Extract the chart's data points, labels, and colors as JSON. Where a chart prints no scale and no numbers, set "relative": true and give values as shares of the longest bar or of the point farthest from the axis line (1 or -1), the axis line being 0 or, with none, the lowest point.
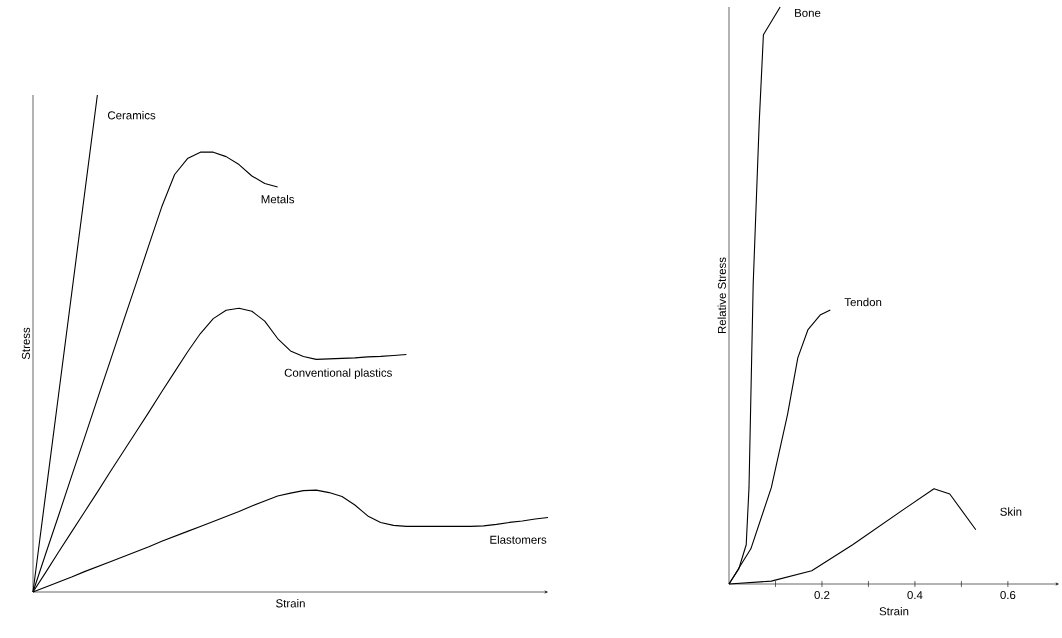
{
  "chart_data": [
    {
      "type": "line",
      "xlabel": "Strain",
      "ylabel": "Stress",
      "relative": true,
      "tick_labels": false,
      "categories": [
        null,
        null,
        null,
        null,
        null,
        null,
        null,
        null,
        null,
        null,
        null,
        null,
        null,
        null,
        null,
        null,
        null,
        null,
        null,
        null,
        null,
        null,
        null,
        null,
        null,
        null,
        null,
        null,
        null,
        null,
        null,
        null,
        null,
        null,
        null,
        null,
        null,
        null,
        null,
        null,
        null
      ],
      "series": [
        {
          "name": "Ceramics",
          "color": "#000000",
          "values": [
            0,
            0.2,
            0.4,
            0.6,
            0.8,
            1.0,
            null,
            null,
            null,
            null,
            null,
            null,
            null,
            null,
            null,
            null,
            null,
            null,
            null,
            null,
            null,
            null,
            null,
            null,
            null,
            null,
            null,
            null,
            null,
            null,
            null,
            null,
            null,
            null,
            null,
            null,
            null,
            null,
            null,
            null,
            null
          ]
        },
        {
          "name": "Metals",
          "color": "#000000",
          "values": [
            0,
            0.078,
            0.155,
            0.233,
            0.31,
            0.388,
            0.465,
            0.543,
            0.62,
            0.698,
            0.775,
            0.84,
            0.872,
            0.885,
            0.885,
            0.876,
            0.86,
            0.837,
            0.822,
            0.815,
            null,
            null,
            null,
            null,
            null,
            null,
            null,
            null,
            null,
            null,
            null,
            null,
            null,
            null,
            null,
            null,
            null,
            null,
            null,
            null,
            null
          ]
        },
        {
          "name": "Conventional plastics",
          "color": "#000000",
          "values": [
            0,
            0.04,
            0.081,
            0.121,
            0.161,
            0.201,
            0.242,
            0.282,
            0.322,
            0.362,
            0.403,
            0.443,
            0.483,
            0.52,
            0.55,
            0.567,
            0.571,
            0.565,
            0.545,
            0.51,
            0.485,
            0.474,
            0.468,
            0.469,
            0.47,
            0.471,
            0.473,
            0.474,
            0.476,
            0.478,
            null,
            null,
            null,
            null,
            null,
            null,
            null,
            null,
            null,
            null,
            null
          ]
        },
        {
          "name": "Elastomers",
          "color": "#000000",
          "values": [
            0,
            0.01,
            0.02,
            0.03,
            0.041,
            0.051,
            0.061,
            0.071,
            0.081,
            0.091,
            0.102,
            0.112,
            0.122,
            0.132,
            0.142,
            0.152,
            0.162,
            0.173,
            0.183,
            0.193,
            0.199,
            0.204,
            0.205,
            0.2,
            0.192,
            0.175,
            0.153,
            0.14,
            0.134,
            0.132,
            0.132,
            0.132,
            0.132,
            0.132,
            0.132,
            0.133,
            0.136,
            0.14,
            0.143,
            0.147,
            0.15
          ]
        }
      ]
    },
    {
      "type": "line",
      "xlabel": "Strain",
      "ylabel": "Relative Stress",
      "relative": true,
      "tick_labels": "x",
      "xlim": [
        0,
        0.71
      ],
      "xticks": [
        {
          "value": 0.1,
          "label": null
        },
        0.2,
        {
          "value": 0.3,
          "label": null
        },
        0.4,
        {
          "value": 0.5,
          "label": null
        },
        0.6
      ],
      "series": [
        {
          "name": "Bone",
          "color": "#000000",
          "x": [
            0,
            0.021,
            0.037,
            0.043,
            0.052,
            0.065,
            0.074,
            0.11
          ],
          "values": [
            0,
            0.026,
            0.068,
            0.167,
            0.519,
            0.8,
            0.952,
            1.0
          ]
        },
        {
          "name": "Tendon",
          "color": "#000000",
          "x": [
            0,
            0.047,
            0.091,
            0.126,
            0.148,
            0.17,
            0.196,
            0.218
          ],
          "values": [
            0,
            0.061,
            0.167,
            0.294,
            0.392,
            0.441,
            0.466,
            0.475
          ]
        },
        {
          "name": "Skin",
          "color": "#000000",
          "x": [
            0,
            0.091,
            0.178,
            0.266,
            0.379,
            0.441,
            0.475,
            0.531
          ],
          "values": [
            0,
            0.005,
            0.023,
            0.068,
            0.131,
            0.165,
            0.156,
            0.094
          ]
        }
      ]
    }
  ]
}
